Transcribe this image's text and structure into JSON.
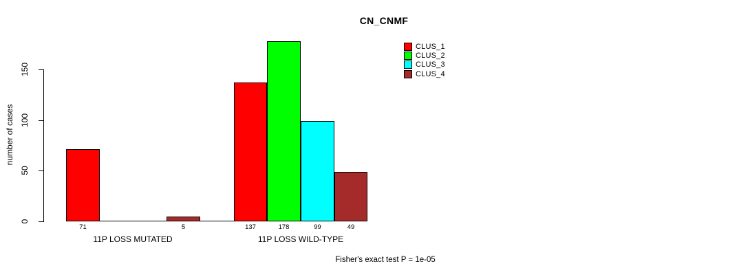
{
  "chart_data": {
    "type": "bar",
    "title": "CN_CNMF",
    "ylabel": "number of cases",
    "footnote": "Fisher's exact test P = 1e-05",
    "categories": [
      "11P LOSS MUTATED",
      "11P LOSS WILD-TYPE"
    ],
    "series": [
      {
        "name": "CLUS_1",
        "color": "#ff0000",
        "values": [
          71,
          137
        ]
      },
      {
        "name": "CLUS_2",
        "color": "#00ff00",
        "values": [
          0,
          178
        ]
      },
      {
        "name": "CLUS_3",
        "color": "#00ffff",
        "values": [
          0,
          99
        ]
      },
      {
        "name": "CLUS_4",
        "color": "#a52a2a",
        "values": [
          5,
          49
        ]
      }
    ],
    "yticks": [
      0,
      50,
      100,
      150
    ],
    "ylim": [
      0,
      186
    ],
    "grid": false,
    "legend_position": "top-right",
    "bar_value_labels": {
      "show": true,
      "hide_zero": true
    },
    "axis_color": "#000000",
    "text_color": "#000000",
    "background": "#ffffff"
  }
}
